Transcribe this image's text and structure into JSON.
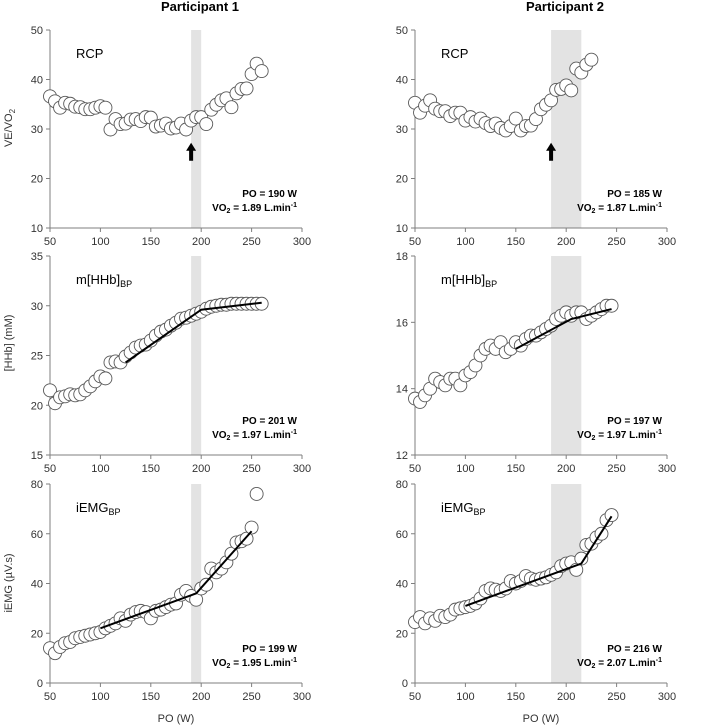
{
  "chart_data": {
    "type": "scatter",
    "columns": [
      "Participant 1",
      "Participant 2"
    ],
    "xlabel": "PO (W)",
    "xlim": [
      50,
      300
    ],
    "xticks": [
      50,
      100,
      150,
      200,
      250,
      300
    ],
    "rows": [
      {
        "ylabel": "VE/VO2",
        "ylim": [
          10,
          50
        ],
        "yticks": [
          10,
          20,
          30,
          40,
          50
        ],
        "panel_label": "RCP",
        "panel_label_sub": ""
      },
      {
        "ylabel": "[HHb] (mM)",
        "panels_ylim": [
          [
            15,
            35
          ],
          [
            12,
            18
          ]
        ],
        "panels_yticks": [
          [
            15,
            20,
            25,
            30,
            35
          ],
          [
            12,
            14,
            16,
            18
          ]
        ],
        "panel_label": "m[HHb]",
        "panel_label_sub": "BP"
      },
      {
        "ylabel": "iEMG (µV.s)",
        "ylim": [
          0,
          80
        ],
        "yticks": [
          0,
          20,
          40,
          60,
          80
        ],
        "panel_label": "iEMG",
        "panel_label_sub": "BP"
      }
    ],
    "panels": [
      {
        "id": "p1-ve",
        "column": 0,
        "row": 0,
        "ylim": [
          10,
          50
        ],
        "yticks": [
          10,
          20,
          30,
          40,
          50
        ],
        "band": [
          190,
          200
        ],
        "arrow_x": 190,
        "arrow_y": 26,
        "annotation": {
          "po": "PO = 190 W",
          "vo2_prefix": "VO",
          "vo2_sub": "2",
          "vo2_text": " = 1.89 L.min",
          "vo2_sup": "-1"
        },
        "points": [
          [
            50,
            36.6
          ],
          [
            55,
            35.6
          ],
          [
            60,
            34.3
          ],
          [
            65,
            35.3
          ],
          [
            70,
            35.1
          ],
          [
            75,
            34.5
          ],
          [
            80,
            34.4
          ],
          [
            85,
            34.0
          ],
          [
            90,
            34.0
          ],
          [
            95,
            34.3
          ],
          [
            100,
            34.6
          ],
          [
            105,
            34.3
          ],
          [
            110,
            29.9
          ],
          [
            115,
            32.0
          ],
          [
            120,
            31.0
          ],
          [
            125,
            31.1
          ],
          [
            130,
            31.9
          ],
          [
            135,
            32.0
          ],
          [
            140,
            31.6
          ],
          [
            145,
            32.4
          ],
          [
            150,
            32.3
          ],
          [
            155,
            30.5
          ],
          [
            160,
            30.7
          ],
          [
            165,
            31.1
          ],
          [
            170,
            30.1
          ],
          [
            175,
            30.3
          ],
          [
            180,
            31.1
          ],
          [
            185,
            29.9
          ],
          [
            190,
            31.7
          ],
          [
            195,
            32.4
          ],
          [
            200,
            32.4
          ],
          [
            205,
            31.0
          ],
          [
            210,
            33.9
          ],
          [
            215,
            34.9
          ],
          [
            220,
            35.8
          ],
          [
            225,
            36.2
          ],
          [
            230,
            34.4
          ],
          [
            235,
            37.2
          ],
          [
            240,
            38.1
          ],
          [
            245,
            38.2
          ],
          [
            250,
            41.1
          ],
          [
            255,
            43.2
          ],
          [
            260,
            41.7
          ]
        ],
        "fit": []
      },
      {
        "id": "p2-ve",
        "column": 1,
        "row": 0,
        "ylim": [
          10,
          50
        ],
        "yticks": [
          10,
          20,
          30,
          40,
          50
        ],
        "band": [
          185,
          215
        ],
        "arrow_x": 185,
        "arrow_y": 26,
        "annotation": {
          "po": "PO = 185 W",
          "vo2_prefix": "VO",
          "vo2_sub": "2",
          "vo2_text": " = 1.87 L.min",
          "vo2_sup": "-1"
        },
        "points": [
          [
            50,
            35.3
          ],
          [
            55,
            33.3
          ],
          [
            60,
            34.7
          ],
          [
            65,
            35.8
          ],
          [
            70,
            34.1
          ],
          [
            75,
            33.6
          ],
          [
            80,
            33.6
          ],
          [
            85,
            32.6
          ],
          [
            90,
            33.3
          ],
          [
            95,
            33.3
          ],
          [
            100,
            31.7
          ],
          [
            105,
            32.4
          ],
          [
            110,
            31.5
          ],
          [
            115,
            32.1
          ],
          [
            120,
            31.2
          ],
          [
            125,
            30.6
          ],
          [
            130,
            31.1
          ],
          [
            135,
            30.2
          ],
          [
            140,
            29.7
          ],
          [
            145,
            30.6
          ],
          [
            150,
            32.1
          ],
          [
            155,
            29.7
          ],
          [
            160,
            30.6
          ],
          [
            165,
            30.7
          ],
          [
            170,
            32.0
          ],
          [
            175,
            34.0
          ],
          [
            180,
            34.9
          ],
          [
            185,
            35.8
          ],
          [
            190,
            37.9
          ],
          [
            195,
            38.1
          ],
          [
            200,
            38.8
          ],
          [
            205,
            37.8
          ],
          [
            210,
            42.2
          ],
          [
            215,
            41.4
          ],
          [
            220,
            43.0
          ],
          [
            225,
            44.0
          ]
        ],
        "fit": []
      },
      {
        "id": "p1-hhb",
        "column": 0,
        "row": 1,
        "ylim": [
          15,
          35
        ],
        "yticks": [
          15,
          20,
          25,
          30,
          35
        ],
        "band": [
          190,
          200
        ],
        "annotation": {
          "po": "PO = 201 W",
          "vo2_prefix": "VO",
          "vo2_sub": "2",
          "vo2_text": " = 1.97 L.min",
          "vo2_sup": "-1"
        },
        "points": [
          [
            50,
            21.5
          ],
          [
            55,
            20.2
          ],
          [
            60,
            20.8
          ],
          [
            65,
            20.9
          ],
          [
            70,
            21.1
          ],
          [
            75,
            21.0
          ],
          [
            80,
            21.1
          ],
          [
            85,
            21.5
          ],
          [
            90,
            21.9
          ],
          [
            95,
            22.4
          ],
          [
            100,
            22.9
          ],
          [
            105,
            22.7
          ],
          [
            110,
            24.3
          ],
          [
            115,
            24.4
          ],
          [
            120,
            24.3
          ],
          [
            125,
            24.9
          ],
          [
            130,
            25.3
          ],
          [
            135,
            25.8
          ],
          [
            140,
            26.0
          ],
          [
            145,
            26.1
          ],
          [
            150,
            26.5
          ],
          [
            155,
            27.0
          ],
          [
            160,
            27.4
          ],
          [
            165,
            27.6
          ],
          [
            170,
            28.0
          ],
          [
            175,
            28.3
          ],
          [
            180,
            28.7
          ],
          [
            185,
            28.8
          ],
          [
            190,
            29.0
          ],
          [
            195,
            29.2
          ],
          [
            200,
            29.4
          ],
          [
            205,
            29.7
          ],
          [
            210,
            29.9
          ],
          [
            215,
            30.0
          ],
          [
            220,
            30.1
          ],
          [
            225,
            30.1
          ],
          [
            230,
            30.2
          ],
          [
            235,
            30.2
          ],
          [
            240,
            30.2
          ],
          [
            245,
            30.2
          ],
          [
            250,
            30.2
          ],
          [
            255,
            30.2
          ],
          [
            260,
            30.2
          ]
        ],
        "fit": [
          [
            125,
            24.3
          ],
          [
            200,
            29.6
          ],
          [
            260,
            30.3
          ]
        ]
      },
      {
        "id": "p2-hhb",
        "column": 1,
        "row": 1,
        "ylim": [
          12,
          18
        ],
        "yticks": [
          12,
          14,
          16,
          18
        ],
        "band": [
          185,
          215
        ],
        "annotation": {
          "po": "PO = 197 W",
          "vo2_prefix": "VO",
          "vo2_sub": "2",
          "vo2_text": " = 1.97 L.min",
          "vo2_sup": "-1"
        },
        "points": [
          [
            50,
            13.7
          ],
          [
            55,
            13.6
          ],
          [
            60,
            13.8
          ],
          [
            65,
            14.0
          ],
          [
            70,
            14.3
          ],
          [
            75,
            14.2
          ],
          [
            80,
            14.1
          ],
          [
            85,
            14.3
          ],
          [
            90,
            14.3
          ],
          [
            95,
            14.1
          ],
          [
            100,
            14.4
          ],
          [
            105,
            14.5
          ],
          [
            110,
            14.7
          ],
          [
            115,
            15.0
          ],
          [
            120,
            15.2
          ],
          [
            125,
            15.3
          ],
          [
            130,
            15.2
          ],
          [
            135,
            15.4
          ],
          [
            140,
            15.1
          ],
          [
            145,
            15.2
          ],
          [
            150,
            15.4
          ],
          [
            155,
            15.3
          ],
          [
            160,
            15.5
          ],
          [
            165,
            15.6
          ],
          [
            170,
            15.6
          ],
          [
            175,
            15.7
          ],
          [
            180,
            15.8
          ],
          [
            185,
            15.9
          ],
          [
            190,
            16.1
          ],
          [
            195,
            16.2
          ],
          [
            200,
            16.3
          ],
          [
            205,
            16.2
          ],
          [
            210,
            16.3
          ],
          [
            215,
            16.3
          ],
          [
            220,
            16.1
          ],
          [
            225,
            16.2
          ],
          [
            230,
            16.3
          ],
          [
            235,
            16.4
          ],
          [
            240,
            16.5
          ],
          [
            245,
            16.5
          ]
        ],
        "fit": [
          [
            150,
            15.2
          ],
          [
            205,
            16.1
          ],
          [
            245,
            16.4
          ]
        ]
      },
      {
        "id": "p1-emg",
        "column": 0,
        "row": 2,
        "ylim": [
          0,
          80
        ],
        "yticks": [
          0,
          20,
          40,
          60,
          80
        ],
        "band": [
          190,
          200
        ],
        "annotation": {
          "po": "PO = 199 W",
          "vo2_prefix": "VO",
          "vo2_sub": "2",
          "vo2_text": " = 1.95 L.min",
          "vo2_sup": "-1"
        },
        "points": [
          [
            50,
            14.0
          ],
          [
            55,
            12.0
          ],
          [
            60,
            14.5
          ],
          [
            65,
            16.0
          ],
          [
            70,
            16.5
          ],
          [
            75,
            18.0
          ],
          [
            80,
            18.5
          ],
          [
            85,
            19.0
          ],
          [
            90,
            19.5
          ],
          [
            95,
            20.0
          ],
          [
            100,
            20.5
          ],
          [
            105,
            22.0
          ],
          [
            110,
            23.0
          ],
          [
            115,
            24.0
          ],
          [
            120,
            26.0
          ],
          [
            125,
            25.0
          ],
          [
            130,
            27.5
          ],
          [
            135,
            28.5
          ],
          [
            140,
            29.0
          ],
          [
            145,
            28.5
          ],
          [
            150,
            26.0
          ],
          [
            155,
            29.0
          ],
          [
            160,
            29.5
          ],
          [
            165,
            30.5
          ],
          [
            170,
            31.5
          ],
          [
            175,
            32.0
          ],
          [
            180,
            35.5
          ],
          [
            185,
            37.0
          ],
          [
            190,
            35.0
          ],
          [
            195,
            33.5
          ],
          [
            200,
            38.0
          ],
          [
            205,
            39.5
          ],
          [
            210,
            46.0
          ],
          [
            215,
            44.5
          ],
          [
            220,
            46.0
          ],
          [
            225,
            48.5
          ],
          [
            230,
            52.0
          ],
          [
            235,
            56.5
          ],
          [
            240,
            57.0
          ],
          [
            245,
            58.0
          ],
          [
            250,
            62.5
          ],
          [
            255,
            76.0
          ]
        ],
        "fit": [
          [
            100,
            22.0
          ],
          [
            195,
            36.0
          ],
          [
            250,
            61.0
          ]
        ]
      },
      {
        "id": "p2-emg",
        "column": 1,
        "row": 2,
        "ylim": [
          0,
          80
        ],
        "yticks": [
          0,
          20,
          40,
          60,
          80
        ],
        "band": [
          185,
          215
        ],
        "annotation": {
          "po": "PO = 216 W",
          "vo2_prefix": "VO",
          "vo2_sub": "2",
          "vo2_text": " = 2.07 L.min",
          "vo2_sup": "-1"
        },
        "points": [
          [
            50,
            24.5
          ],
          [
            55,
            26.5
          ],
          [
            60,
            24.0
          ],
          [
            65,
            26.0
          ],
          [
            70,
            25.0
          ],
          [
            75,
            27.0
          ],
          [
            80,
            26.5
          ],
          [
            85,
            27.5
          ],
          [
            90,
            29.5
          ],
          [
            95,
            30.0
          ],
          [
            100,
            30.5
          ],
          [
            105,
            31.0
          ],
          [
            110,
            32.0
          ],
          [
            115,
            34.0
          ],
          [
            120,
            37.0
          ],
          [
            125,
            38.0
          ],
          [
            130,
            37.5
          ],
          [
            135,
            37.0
          ],
          [
            140,
            38.0
          ],
          [
            145,
            41.0
          ],
          [
            150,
            40.0
          ],
          [
            155,
            41.0
          ],
          [
            160,
            43.0
          ],
          [
            165,
            42.0
          ],
          [
            170,
            41.5
          ],
          [
            175,
            42.0
          ],
          [
            180,
            42.5
          ],
          [
            185,
            43.5
          ],
          [
            190,
            44.5
          ],
          [
            195,
            47.0
          ],
          [
            200,
            48.0
          ],
          [
            205,
            48.5
          ],
          [
            210,
            45.5
          ],
          [
            215,
            50.0
          ],
          [
            220,
            55.5
          ],
          [
            225,
            56.0
          ],
          [
            230,
            58.5
          ],
          [
            235,
            60.0
          ],
          [
            240,
            65.5
          ],
          [
            245,
            67.5
          ]
        ],
        "fit": [
          [
            100,
            31.0
          ],
          [
            215,
            48.0
          ],
          [
            245,
            67.0
          ]
        ]
      }
    ]
  }
}
